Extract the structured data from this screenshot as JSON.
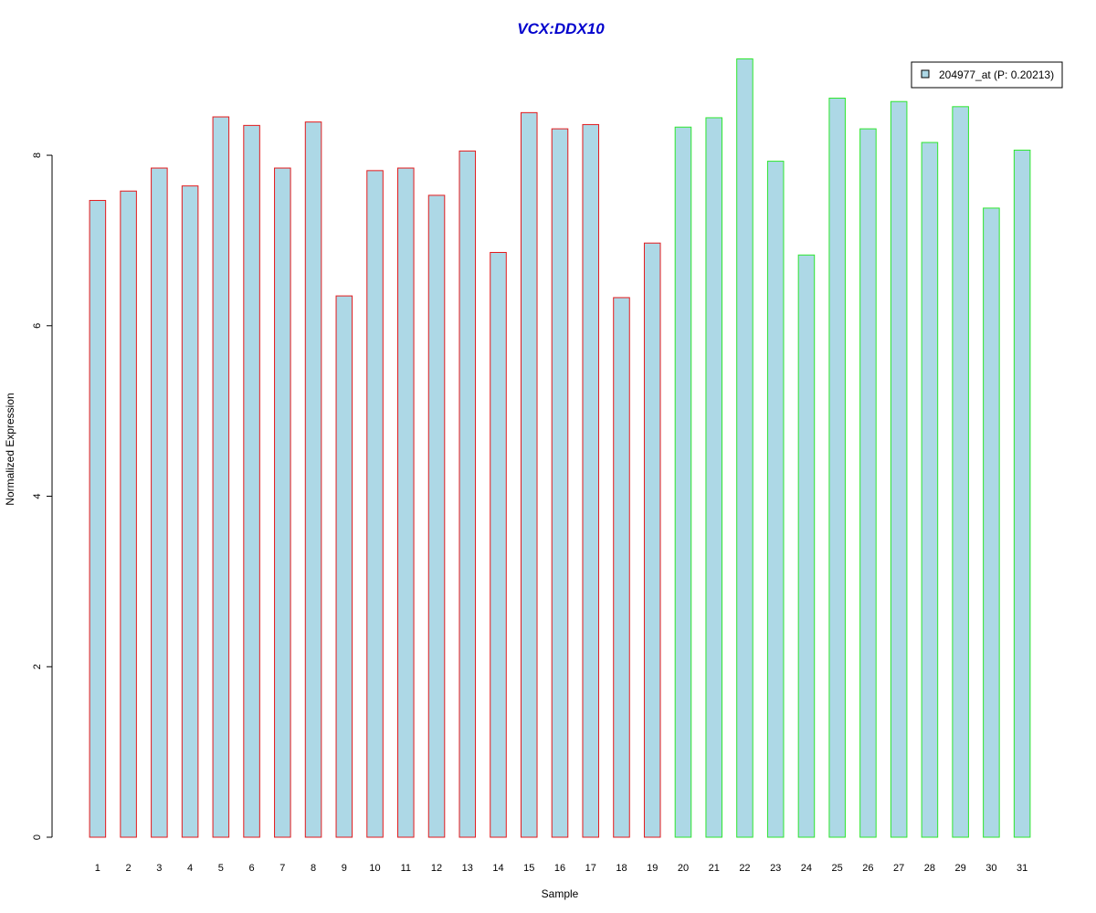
{
  "chart_data": {
    "type": "bar",
    "title": "VCX:DDX10",
    "xlabel": "Sample",
    "ylabel": "Normalized Expression",
    "categories": [
      "1",
      "2",
      "3",
      "4",
      "5",
      "6",
      "7",
      "8",
      "9",
      "10",
      "11",
      "12",
      "13",
      "14",
      "15",
      "16",
      "17",
      "18",
      "19",
      "20",
      "21",
      "22",
      "23",
      "24",
      "25",
      "26",
      "27",
      "28",
      "29",
      "30",
      "31"
    ],
    "series": [
      {
        "name": "204977_at (P: 0.20213)",
        "values": [
          7.47,
          7.58,
          7.85,
          7.64,
          8.45,
          8.35,
          7.85,
          8.39,
          6.35,
          7.82,
          7.85,
          7.53,
          8.05,
          6.86,
          8.5,
          8.31,
          8.36,
          6.33,
          6.97,
          8.33,
          8.44,
          9.13,
          7.93,
          6.83,
          8.67,
          8.31,
          8.63,
          8.15,
          8.57,
          7.38,
          8.06
        ]
      }
    ],
    "group_borders": [
      "#e31a1c",
      "#e31a1c",
      "#e31a1c",
      "#e31a1c",
      "#e31a1c",
      "#e31a1c",
      "#e31a1c",
      "#e31a1c",
      "#e31a1c",
      "#e31a1c",
      "#e31a1c",
      "#e31a1c",
      "#e31a1c",
      "#e31a1c",
      "#e31a1c",
      "#e31a1c",
      "#e31a1c",
      "#e31a1c",
      "#e31a1c",
      "#2ee62e",
      "#2ee62e",
      "#2ee62e",
      "#2ee62e",
      "#2ee62e",
      "#2ee62e",
      "#2ee62e",
      "#2ee62e",
      "#2ee62e",
      "#2ee62e",
      "#2ee62e",
      "#2ee62e"
    ],
    "y_ticks": [
      0,
      2,
      4,
      6,
      8
    ],
    "ylim": [
      0,
      9.2
    ],
    "grid": false,
    "legend_position": "top-right",
    "colors": {
      "bar_fill": "#add8e6",
      "title": "#0000cd",
      "axis": "#000000"
    }
  }
}
